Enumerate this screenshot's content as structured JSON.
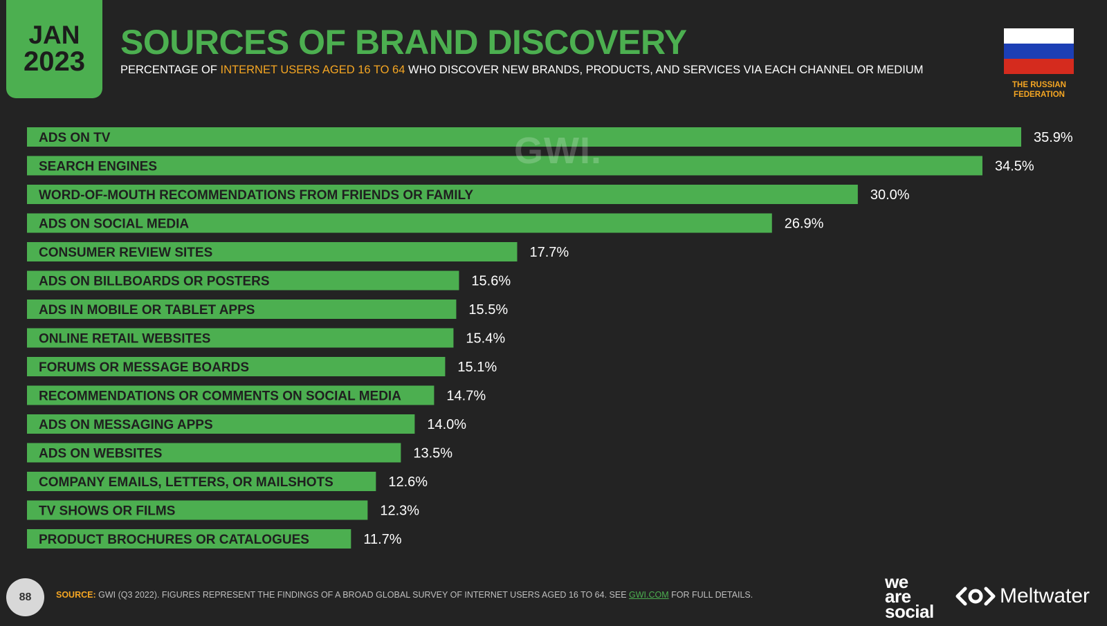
{
  "header": {
    "month": "JAN",
    "year": "2023",
    "title": "SOURCES OF BRAND DISCOVERY",
    "subtitle_pre": "PERCENTAGE OF ",
    "subtitle_highlight": "INTERNET USERS AGED 16 TO 64",
    "subtitle_post": " WHO DISCOVER NEW BRANDS, PRODUCTS, AND SERVICES VIA EACH CHANNEL OR MEDIUM",
    "country": "THE RUSSIAN FEDERATION",
    "watermark": "GWI."
  },
  "colors": {
    "bar": "#4caf50",
    "accent": "#f5a623",
    "background": "#232323",
    "flag": [
      "#ffffff",
      "#1c3fb5",
      "#d52b1e"
    ]
  },
  "chart_data": {
    "type": "bar",
    "orientation": "horizontal",
    "categories": [
      "ADS ON TV",
      "SEARCH ENGINES",
      "WORD-OF-MOUTH RECOMMENDATIONS FROM FRIENDS OR FAMILY",
      "ADS ON SOCIAL MEDIA",
      "CONSUMER REVIEW SITES",
      "ADS ON BILLBOARDS OR POSTERS",
      "ADS IN MOBILE OR TABLET APPS",
      "ONLINE RETAIL WEBSITES",
      "FORUMS OR MESSAGE BOARDS",
      "RECOMMENDATIONS OR COMMENTS ON SOCIAL MEDIA",
      "ADS ON MESSAGING APPS",
      "ADS ON WEBSITES",
      "COMPANY EMAILS, LETTERS, OR MAILSHOTS",
      "TV SHOWS OR FILMS",
      "PRODUCT BROCHURES OR CATALOGUES"
    ],
    "values": [
      35.9,
      34.5,
      30.0,
      26.9,
      17.7,
      15.6,
      15.5,
      15.4,
      15.1,
      14.7,
      14.0,
      13.5,
      12.6,
      12.3,
      11.7
    ],
    "value_labels": [
      "35.9%",
      "34.5%",
      "30.0%",
      "26.9%",
      "17.7%",
      "15.6%",
      "15.5%",
      "15.4%",
      "15.1%",
      "14.7%",
      "14.0%",
      "13.5%",
      "12.6%",
      "12.3%",
      "11.7%"
    ],
    "unit": "%",
    "grid": false
  },
  "footer": {
    "page_number": "88",
    "source_label": "SOURCE:",
    "source_pre": " GWI (Q3 2022). FIGURES REPRESENT THE FINDINGS OF A BROAD GLOBAL SURVEY OF INTERNET USERS AGED 16 TO 64. SEE ",
    "source_link": "GWI.COM",
    "source_post": " FOR FULL DETAILS.",
    "brand1_line1": "we",
    "brand1_line2": "are",
    "brand1_line3": "social",
    "brand2": "Meltwater",
    "brand2_icon": "meltwater-logo-icon"
  }
}
